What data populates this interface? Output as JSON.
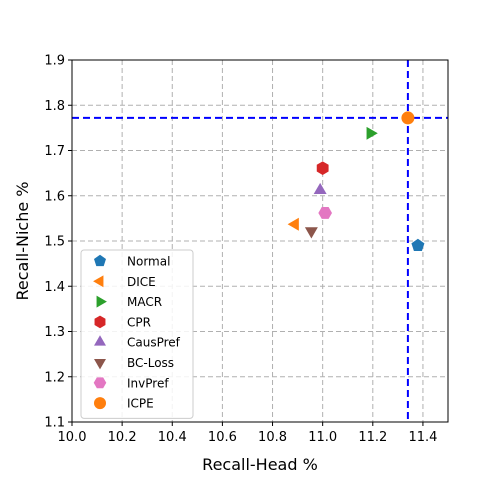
{
  "chart_data": {
    "type": "scatter",
    "title": "",
    "xlabel": "Recall-Head %",
    "ylabel": "Recall-Niche %",
    "xlim": [
      10.0,
      11.5
    ],
    "ylim": [
      1.1,
      1.9
    ],
    "x_ticks": [
      "10.0",
      "10.2",
      "10.4",
      "10.6",
      "10.8",
      "11.0",
      "11.2",
      "11.4"
    ],
    "y_ticks": [
      "1.1",
      "1.2",
      "1.3",
      "1.4",
      "1.5",
      "1.6",
      "1.7",
      "1.8",
      "1.9"
    ],
    "grid": true,
    "legend_position": "lower-left",
    "reference_lines": {
      "color": "#0000ff",
      "style": "dashed",
      "x": 11.34,
      "y": 1.772
    },
    "series": [
      {
        "name": "Normal",
        "marker": "pentagon",
        "color": "#1f77b4",
        "x": 11.38,
        "y": 1.49
      },
      {
        "name": "DICE",
        "marker": "triangle-left",
        "color": "#ff7f0e",
        "x": 10.89,
        "y": 1.537
      },
      {
        "name": "MACR",
        "marker": "triangle-right",
        "color": "#2ca02c",
        "x": 11.19,
        "y": 1.738
      },
      {
        "name": "CPR",
        "marker": "hexagon",
        "color": "#d62728",
        "x": 11.0,
        "y": 1.661
      },
      {
        "name": "CausPref",
        "marker": "triangle-up",
        "color": "#9467bd",
        "x": 10.99,
        "y": 1.612
      },
      {
        "name": "BC-Loss",
        "marker": "triangle-down",
        "color": "#8c564b",
        "x": 10.955,
        "y": 1.522
      },
      {
        "name": "InvPref",
        "marker": "hexagon-flat",
        "color": "#e377c2",
        "x": 11.01,
        "y": 1.562
      },
      {
        "name": "ICPE",
        "marker": "circle",
        "color": "#ff7f0e",
        "x": 11.34,
        "y": 1.772
      }
    ]
  }
}
